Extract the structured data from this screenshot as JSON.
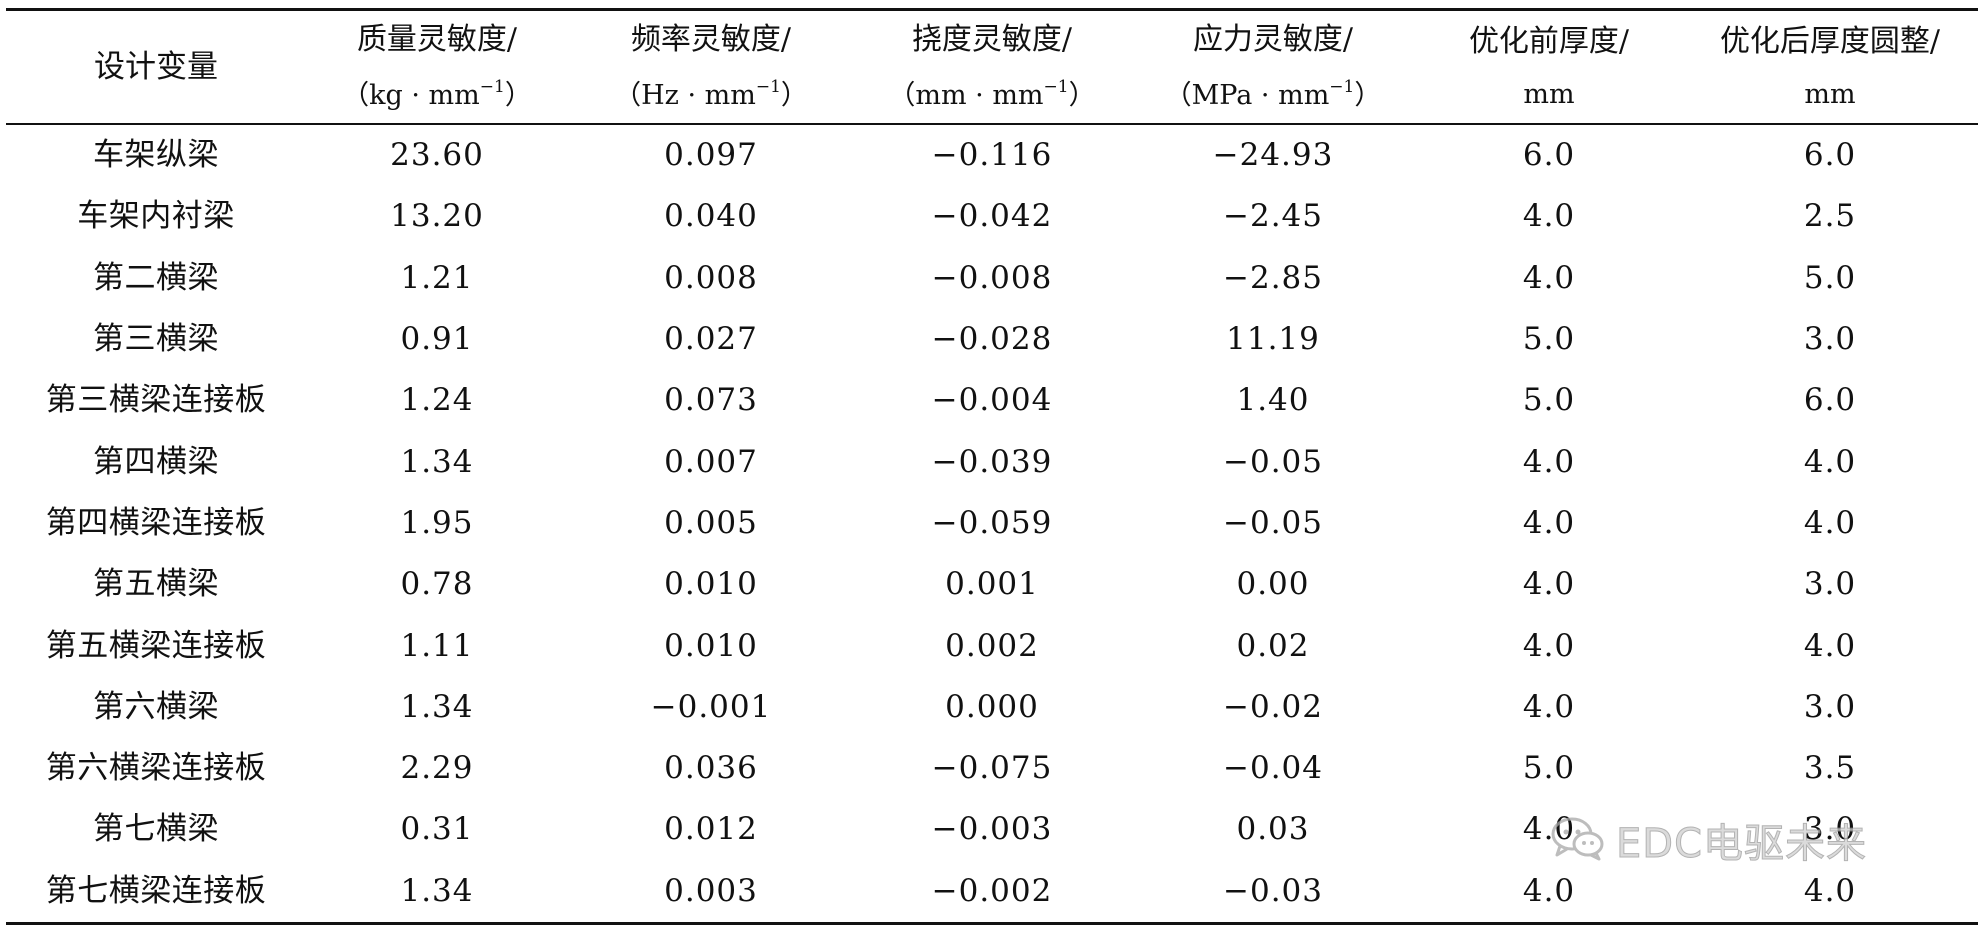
{
  "table": {
    "headers": [
      {
        "line1": "设计变量"
      },
      {
        "line1": "质量灵敏度/",
        "line2_pre": "（kg · mm",
        "line2_sup": "−1",
        "line2_post": "）"
      },
      {
        "line1": "频率灵敏度/",
        "line2_pre": "（Hz · mm",
        "line2_sup": "−1",
        "line2_post": "）"
      },
      {
        "line1": "挠度灵敏度/",
        "line2_pre": "（mm · mm",
        "line2_sup": "−1",
        "line2_post": "）"
      },
      {
        "line1": "应力灵敏度/",
        "line2_pre": "（MPa · mm",
        "line2_sup": "−1",
        "line2_post": "）"
      },
      {
        "line1": "优化前厚度/",
        "line2_pre": "mm"
      },
      {
        "line1": "优化后厚度圆整/",
        "line2_pre": "mm"
      }
    ],
    "rows": [
      [
        "车架纵梁",
        "23.60",
        "0.097",
        "−0.116",
        "−24.93",
        "6.0",
        "6.0"
      ],
      [
        "车架内衬梁",
        "13.20",
        "0.040",
        "−0.042",
        "−2.45",
        "4.0",
        "2.5"
      ],
      [
        "第二横梁",
        "1.21",
        "0.008",
        "−0.008",
        "−2.85",
        "4.0",
        "5.0"
      ],
      [
        "第三横梁",
        "0.91",
        "0.027",
        "−0.028",
        "11.19",
        "5.0",
        "3.0"
      ],
      [
        "第三横梁连接板",
        "1.24",
        "0.073",
        "−0.004",
        "1.40",
        "5.0",
        "6.0"
      ],
      [
        "第四横梁",
        "1.34",
        "0.007",
        "−0.039",
        "−0.05",
        "4.0",
        "4.0"
      ],
      [
        "第四横梁连接板",
        "1.95",
        "0.005",
        "−0.059",
        "−0.05",
        "4.0",
        "4.0"
      ],
      [
        "第五横梁",
        "0.78",
        "0.010",
        "0.001",
        "0.00",
        "4.0",
        "3.0"
      ],
      [
        "第五横梁连接板",
        "1.11",
        "0.010",
        "0.002",
        "0.02",
        "4.0",
        "4.0"
      ],
      [
        "第六横梁",
        "1.34",
        "−0.001",
        "0.000",
        "−0.02",
        "4.0",
        "3.0"
      ],
      [
        "第六横梁连接板",
        "2.29",
        "0.036",
        "−0.075",
        "−0.04",
        "5.0",
        "3.5"
      ],
      [
        "第七横梁",
        "0.31",
        "0.012",
        "−0.003",
        "0.03",
        "4.0",
        "3.0"
      ],
      [
        "第七横梁连接板",
        "1.34",
        "0.003",
        "−0.002",
        "−0.03",
        "4.0",
        "4.0"
      ]
    ]
  },
  "watermark": {
    "text": "EDC电驱未来",
    "icon": "wechat-icon"
  }
}
